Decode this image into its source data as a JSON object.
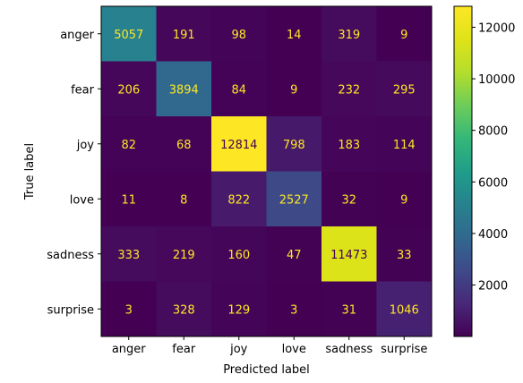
{
  "chart_data": {
    "type": "heatmap",
    "title": "",
    "xlabel": "Predicted label",
    "ylabel": "True label",
    "x_categories": [
      "anger",
      "fear",
      "joy",
      "love",
      "sadness",
      "surprise"
    ],
    "y_categories": [
      "anger",
      "fear",
      "joy",
      "love",
      "sadness",
      "surprise"
    ],
    "values": [
      [
        5057,
        191,
        98,
        14,
        319,
        9
      ],
      [
        206,
        3894,
        84,
        9,
        232,
        295
      ],
      [
        82,
        68,
        12814,
        798,
        183,
        114
      ],
      [
        11,
        8,
        822,
        2527,
        32,
        9
      ],
      [
        333,
        219,
        160,
        47,
        11473,
        33
      ],
      [
        3,
        328,
        129,
        3,
        31,
        1046
      ]
    ],
    "colormap": "viridis",
    "colorbar": {
      "range": [
        3,
        12814
      ],
      "ticks": [
        2000,
        4000,
        6000,
        8000,
        10000,
        12000
      ]
    },
    "colors": {
      "low_text": "#fde725",
      "high_text": "#440154"
    },
    "grid": false
  }
}
